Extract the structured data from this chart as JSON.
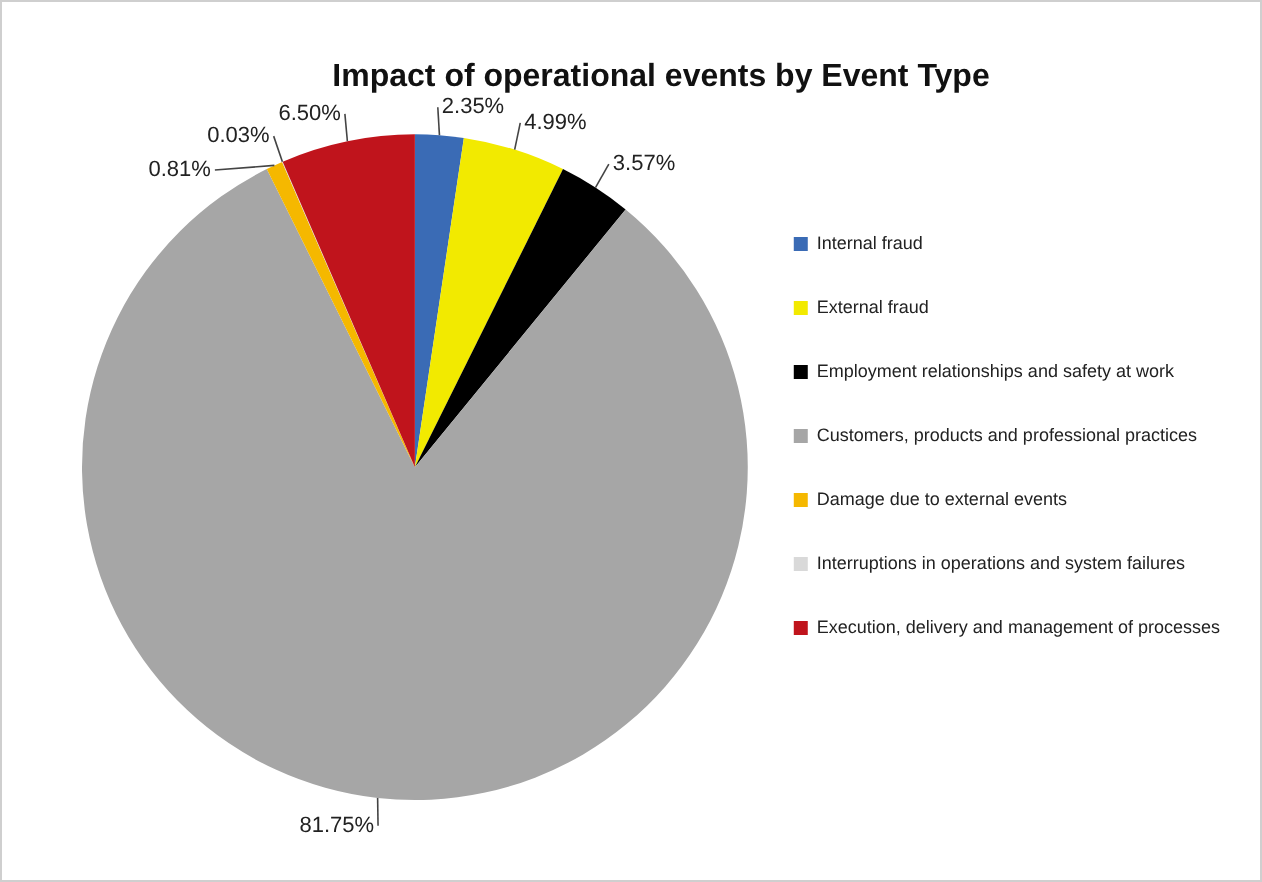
{
  "chart_data": {
    "type": "pie",
    "title": "Impact of operational events by Event Type",
    "categories": [
      "Internal fraud",
      "External fraud",
      "Employment relationships and safety at work",
      "Customers, products and professional practices",
      "Damage due to external events",
      "Interruptions in operations and system failures",
      "Execution, delivery and management of processes"
    ],
    "values": [
      2.35,
      4.99,
      3.57,
      81.75,
      0.81,
      0.03,
      6.5
    ],
    "value_labels": [
      "2.35%",
      "4.99%",
      "3.57%",
      "81.75%",
      "0.81%",
      "0.03%",
      "6.50%"
    ],
    "colors": [
      "#3a6bb5",
      "#f2ea00",
      "#000000",
      "#a6a6a6",
      "#f5b800",
      "#d9d9d9",
      "#c0141c"
    ],
    "legend": "right"
  }
}
